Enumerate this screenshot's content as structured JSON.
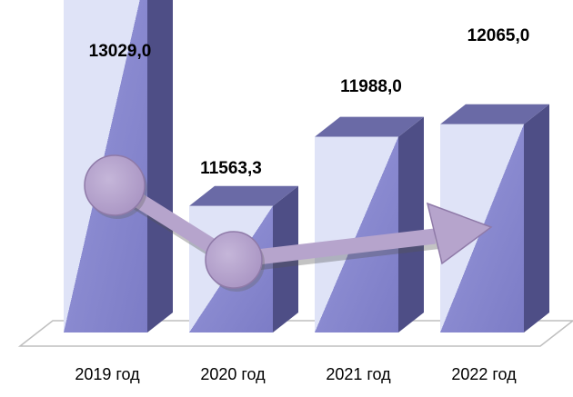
{
  "chart_data": {
    "type": "bar",
    "style": "3d",
    "categories": [
      "2019 год",
      "2020 год",
      "2021 год",
      "2022 год"
    ],
    "values": [
      13029.0,
      11563.3,
      11988.0,
      12065.0
    ],
    "value_labels": [
      "13029,0",
      "11563,3",
      "11988,0",
      "12065,0"
    ],
    "trend_arrow": true,
    "grid": false,
    "legend": "none",
    "colors": {
      "bar_front": "#8a8ad0",
      "bar_front_light": "#dfe3f7",
      "bar_side": "#4e4e86",
      "bar_top": "#6a6aa6",
      "arrow": "#b6a4cc",
      "arrow_edge": "#8f7aa8",
      "floor": "#bfbfbf"
    }
  }
}
